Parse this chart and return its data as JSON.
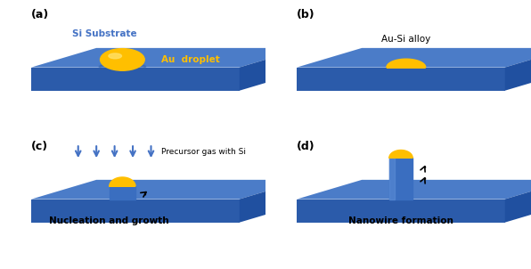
{
  "figsize": [
    5.96,
    3.02
  ],
  "dpi": 100,
  "bg_color": "#ffffff",
  "color_top": "#4B7CC8",
  "color_front": "#2B5BAA",
  "color_right": "#2050A0",
  "color_nw": "#3A6EC0",
  "gold_color": "#FFBF00",
  "gold_highlight": "#FFE066",
  "arrow_color": "#4472C4",
  "label_a": "(a)",
  "label_b": "(b)",
  "label_c": "(c)",
  "label_d": "(d)",
  "text_si_substrate": "Si Substrate",
  "text_au_droplet": "Au  droplet",
  "text_au_si_alloy": "Au-Si alloy",
  "text_precursor": "Precursor gas with Si",
  "text_nucleation": "Nucleation and growth",
  "text_nanowire": "Nanowire formation",
  "si_text_color": "#4472C4",
  "au_text_color": "#FFBF00",
  "black": "#000000"
}
